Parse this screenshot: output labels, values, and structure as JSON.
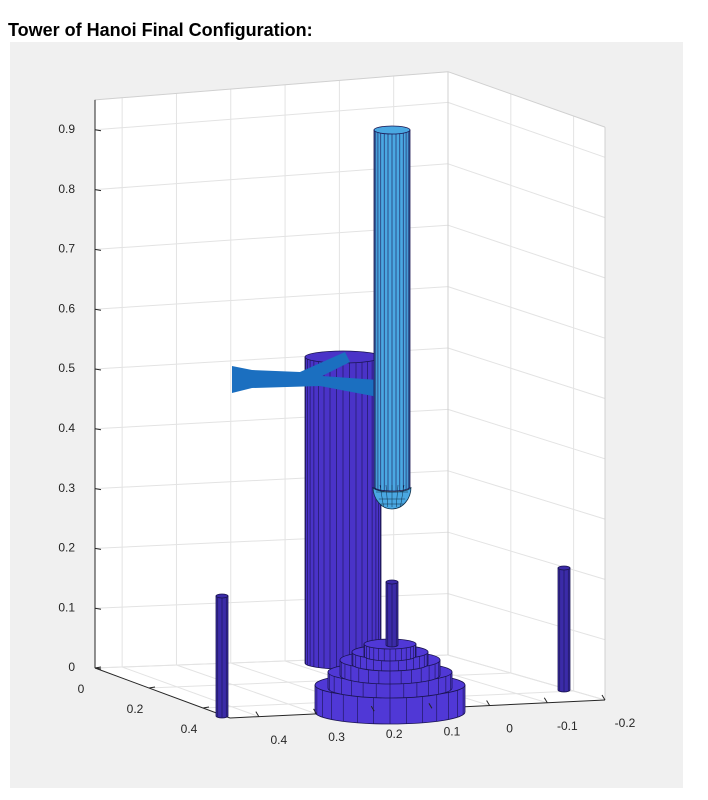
{
  "chart_data": {
    "type": "scene3d",
    "title": "Tower of Hanoi Final Configuration:",
    "xlim": [
      0,
      0.5
    ],
    "ylim": [
      0.45,
      -0.2
    ],
    "zlim": [
      0,
      0.95
    ],
    "xticks": [
      0,
      0.2,
      0.4
    ],
    "yticks": [
      0.4,
      0.3,
      0.2,
      0.1,
      0,
      -0.1,
      -0.2
    ],
    "zticks": [
      0,
      0.1,
      0.2,
      0.3,
      0.4,
      0.5,
      0.6,
      0.7,
      0.8,
      0.9
    ],
    "grid": true
  }
}
